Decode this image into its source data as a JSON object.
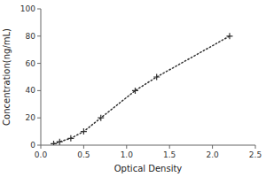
{
  "chart_data": {
    "type": "line",
    "xlabel": "Optical Density",
    "ylabel": "Concentration(ng/mL)",
    "x": [
      0.15,
      0.22,
      0.35,
      0.5,
      0.7,
      1.1,
      1.35,
      2.2
    ],
    "series": [
      {
        "values": [
          1.0,
          2.5,
          5.0,
          10.0,
          20.0,
          40.0,
          50.0,
          80.0
        ],
        "color": "#333333",
        "marker": "plus",
        "line_style": "dotted"
      }
    ],
    "xlim": [
      0,
      2.5
    ],
    "ylim": [
      0,
      100
    ],
    "xticks": [
      {
        "value": 0,
        "label": "0.0"
      },
      0.5,
      {
        "value": 1,
        "label": "1.0"
      },
      1.5,
      {
        "value": 2,
        "label": "2.0"
      },
      2.5
    ],
    "yticks": [
      0,
      20,
      40,
      60,
      80,
      100
    ],
    "grid": false
  }
}
